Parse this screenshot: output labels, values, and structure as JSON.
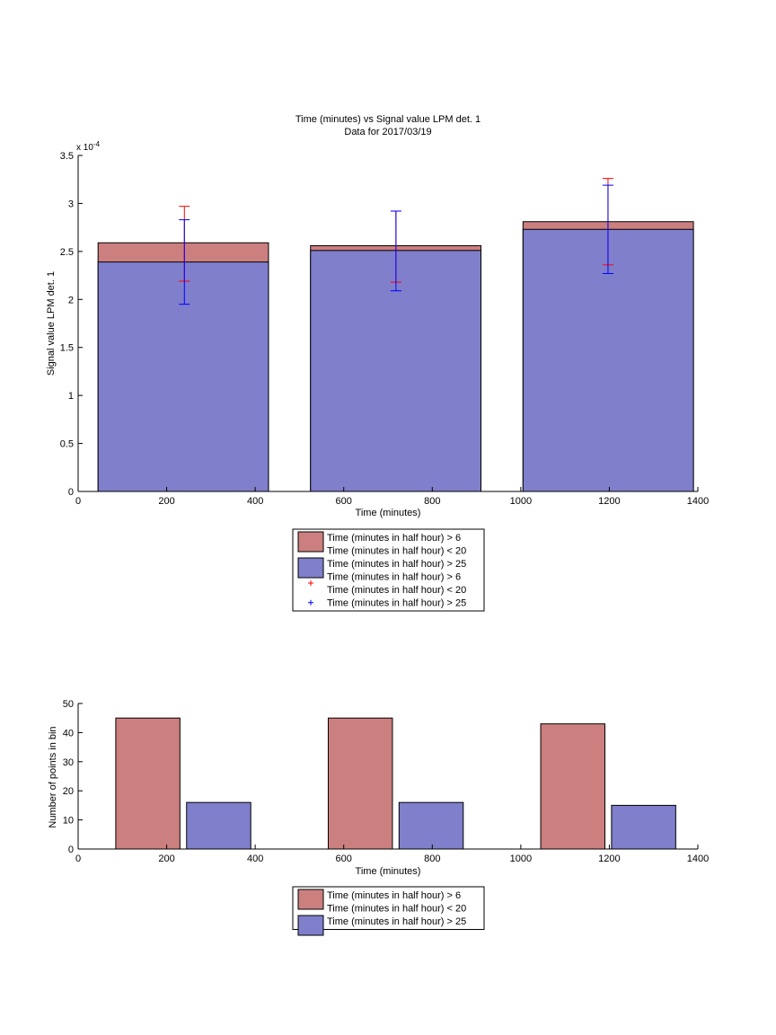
{
  "colors": {
    "red_fill": "#CC7F7F",
    "blue_fill": "#7F7FCC",
    "red_marker": "#FF0000",
    "blue_marker": "#0000FF",
    "axis": "#000000",
    "background": "#FFFFFF"
  },
  "chart_data": [
    {
      "type": "bar",
      "subtype": "overlaid-with-error-bars",
      "title": "Time (minutes) vs Signal value LPM det. 1",
      "subtitle": "Data for 2017/03/19",
      "xlabel": "Time (minutes)",
      "ylabel": "Signal value LPM det. 1",
      "y_exponent_label": "x 10",
      "y_exponent_power": "-4",
      "xlim": [
        0,
        1400
      ],
      "ylim": [
        0,
        3.5
      ],
      "xticks": [
        "0",
        "200",
        "400",
        "600",
        "800",
        "1000",
        "1200",
        "1400"
      ],
      "yticks": [
        "0",
        "0.5",
        "1",
        "1.5",
        "2",
        "2.5",
        "3",
        "3.5"
      ],
      "y_scale_factor": 0.0001,
      "bars": [
        {
          "x_start": 45,
          "x_end": 430,
          "red": 2.59,
          "blue": 2.39
        },
        {
          "x_start": 525,
          "x_end": 910,
          "red": 2.56,
          "blue": 2.51
        },
        {
          "x_start": 1005,
          "x_end": 1390,
          "red": 2.81,
          "blue": 2.73
        }
      ],
      "error_bars": [
        {
          "x": 240,
          "red_low": 2.19,
          "red_high": 2.97,
          "blue_low": 1.95,
          "blue_high": 2.83
        },
        {
          "x": 718,
          "red_low": 2.18,
          "red_high": 2.92,
          "blue_low": 2.09,
          "blue_high": 2.92
        },
        {
          "x": 1197,
          "red_low": 2.36,
          "red_high": 3.26,
          "blue_low": 2.27,
          "blue_high": 3.19
        }
      ],
      "legend_position": "below",
      "legend": [
        {
          "kind": "patch",
          "color": "red",
          "lines": [
            "Time (minutes in half hour) > 6",
            "Time (minutes in half hour) < 20"
          ]
        },
        {
          "kind": "patch",
          "color": "blue",
          "lines": [
            "Time (minutes in half hour) > 25"
          ]
        },
        {
          "kind": "marker",
          "color": "red",
          "lines": [
            "Time (minutes in half hour) > 6",
            "Time (minutes in half hour) < 20"
          ]
        },
        {
          "kind": "marker",
          "color": "blue",
          "lines": [
            "Time (minutes in half hour) > 25"
          ]
        }
      ]
    },
    {
      "type": "bar",
      "subtype": "grouped",
      "title": "",
      "xlabel": "Time (minutes)",
      "ylabel": "Number of points in bin",
      "xlim": [
        0,
        1400
      ],
      "ylim": [
        0,
        50
      ],
      "xticks": [
        "0",
        "200",
        "400",
        "600",
        "800",
        "1000",
        "1200",
        "1400"
      ],
      "yticks": [
        "0",
        "10",
        "20",
        "30",
        "40",
        "50"
      ],
      "bars": [
        {
          "x_start": 85,
          "x_end": 230,
          "color": "red",
          "value": 45
        },
        {
          "x_start": 245,
          "x_end": 390,
          "color": "blue",
          "value": 16
        },
        {
          "x_start": 565,
          "x_end": 710,
          "color": "red",
          "value": 45
        },
        {
          "x_start": 725,
          "x_end": 870,
          "color": "blue",
          "value": 16
        },
        {
          "x_start": 1045,
          "x_end": 1190,
          "color": "red",
          "value": 43
        },
        {
          "x_start": 1205,
          "x_end": 1350,
          "color": "blue",
          "value": 15
        }
      ],
      "legend_position": "below",
      "legend": [
        {
          "kind": "patch",
          "color": "red",
          "lines": [
            "Time (minutes in half hour) > 6",
            "Time (minutes in half hour) < 20"
          ]
        },
        {
          "kind": "patch",
          "color": "blue",
          "lines": [
            "Time (minutes in half hour) > 25"
          ]
        }
      ]
    }
  ]
}
